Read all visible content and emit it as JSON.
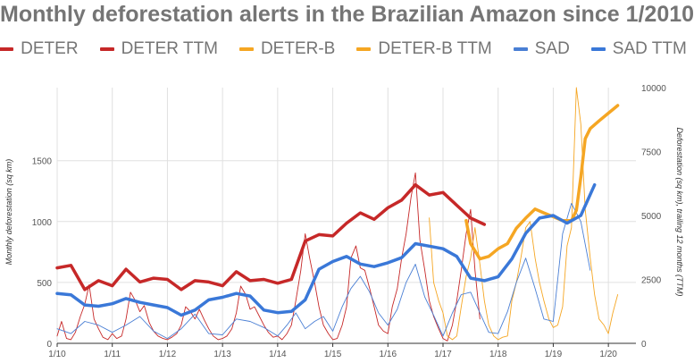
{
  "chart_data": {
    "type": "line",
    "title": "Monthly deforestation alerts in the Brazilian Amazon since 1/2010",
    "ylabel": "Monthly deforestation (sq km)",
    "y2label": "Deforestation (sq km), trailing 12 months (TTM)",
    "ylim": [
      0,
      2100
    ],
    "y2lim": [
      0,
      10000
    ],
    "xlim": [
      2010.0,
      2020.5
    ],
    "grid": true,
    "legend": "top",
    "x_ticks": [
      {
        "x": 2010,
        "label": "1/10"
      },
      {
        "x": 2011,
        "label": "1/11"
      },
      {
        "x": 2012,
        "label": "1/12"
      },
      {
        "x": 2013,
        "label": "1/13"
      },
      {
        "x": 2014,
        "label": "1/14"
      },
      {
        "x": 2015,
        "label": "1/15"
      },
      {
        "x": 2016,
        "label": "1/16"
      },
      {
        "x": 2017,
        "label": "1/17"
      },
      {
        "x": 2018,
        "label": "1/18"
      },
      {
        "x": 2019,
        "label": "1/19"
      },
      {
        "x": 2020,
        "label": "1/20"
      }
    ],
    "y_ticks": [
      0,
      500,
      1000,
      1500
    ],
    "y2_ticks": [
      0,
      2500,
      5000,
      7500,
      10000
    ],
    "series": [
      {
        "name": "DETER",
        "color": "#c62828",
        "axis": "left",
        "width": 0.9,
        "x": [
          2010.0,
          2010.08,
          2010.17,
          2010.25,
          2010.33,
          2010.42,
          2010.5,
          2010.58,
          2010.67,
          2010.75,
          2010.83,
          2010.92,
          2011.0,
          2011.08,
          2011.17,
          2011.25,
          2011.33,
          2011.42,
          2011.5,
          2011.58,
          2011.67,
          2011.75,
          2011.83,
          2011.92,
          2012.0,
          2012.08,
          2012.17,
          2012.25,
          2012.33,
          2012.42,
          2012.5,
          2012.58,
          2012.67,
          2012.75,
          2012.83,
          2012.92,
          2013.0,
          2013.08,
          2013.17,
          2013.25,
          2013.33,
          2013.42,
          2013.5,
          2013.58,
          2013.67,
          2013.75,
          2013.83,
          2013.92,
          2014.0,
          2014.08,
          2014.17,
          2014.25,
          2014.33,
          2014.42,
          2014.5,
          2014.58,
          2014.67,
          2014.75,
          2014.83,
          2014.92,
          2015.0,
          2015.08,
          2015.17,
          2015.25,
          2015.33,
          2015.42,
          2015.5,
          2015.58,
          2015.67,
          2015.75,
          2015.83,
          2015.92,
          2016.0,
          2016.08,
          2016.17,
          2016.25,
          2016.33,
          2016.42,
          2016.5,
          2016.58,
          2016.67,
          2016.75,
          2016.83,
          2016.92,
          2017.0,
          2017.08,
          2017.17,
          2017.25,
          2017.33,
          2017.42,
          2017.5,
          2017.58,
          2017.67
        ],
        "y": [
          60,
          180,
          40,
          30,
          90,
          220,
          320,
          480,
          200,
          120,
          50,
          30,
          80,
          40,
          60,
          200,
          420,
          350,
          260,
          310,
          170,
          100,
          60,
          40,
          30,
          50,
          80,
          150,
          300,
          260,
          200,
          280,
          190,
          120,
          60,
          30,
          40,
          60,
          120,
          250,
          470,
          400,
          280,
          300,
          220,
          150,
          90,
          50,
          60,
          30,
          80,
          150,
          350,
          600,
          900,
          700,
          500,
          300,
          150,
          80,
          30,
          40,
          150,
          300,
          700,
          800,
          620,
          600,
          450,
          300,
          150,
          100,
          80,
          300,
          450,
          700,
          900,
          1200,
          1400,
          850,
          600,
          350,
          220,
          120,
          40,
          20,
          150,
          350,
          600,
          900,
          1100,
          600,
          200
        ]
      },
      {
        "name": "DETER TTM",
        "color": "#c62828",
        "axis": "right",
        "width": 3.5,
        "x": [
          2010.0,
          2010.25,
          2010.5,
          2010.75,
          2011.0,
          2011.25,
          2011.5,
          2011.75,
          2012.0,
          2012.25,
          2012.5,
          2012.75,
          2013.0,
          2013.25,
          2013.5,
          2013.75,
          2014.0,
          2014.25,
          2014.5,
          2014.75,
          2015.0,
          2015.25,
          2015.5,
          2015.75,
          2016.0,
          2016.25,
          2016.5,
          2016.75,
          2017.0,
          2017.25,
          2017.5,
          2017.75
        ],
        "y": [
          2950,
          3050,
          2100,
          2450,
          2250,
          2900,
          2400,
          2550,
          2500,
          2100,
          2450,
          2400,
          2250,
          2800,
          2450,
          2500,
          2350,
          2500,
          4000,
          4250,
          4200,
          4700,
          5100,
          4850,
          5300,
          5600,
          6200,
          5800,
          5900,
          5400,
          4900,
          4650
        ]
      },
      {
        "name": "DETER-B",
        "color": "#f5a623",
        "axis": "left",
        "width": 0.9,
        "x": [
          2016.75,
          2016.83,
          2016.92,
          2017.0,
          2017.08,
          2017.17,
          2017.25,
          2017.33,
          2017.42,
          2017.5,
          2017.58,
          2017.67,
          2017.75,
          2017.83,
          2017.92,
          2018.0,
          2018.08,
          2018.17,
          2018.25,
          2018.33,
          2018.42,
          2018.5,
          2018.58,
          2018.67,
          2018.75,
          2018.83,
          2018.92,
          2019.0,
          2019.08,
          2019.17,
          2019.25,
          2019.33,
          2019.42,
          2019.5,
          2019.58,
          2019.67,
          2019.75,
          2019.83,
          2019.92,
          2020.0,
          2020.08,
          2020.17
        ],
        "y": [
          1030,
          500,
          350,
          250,
          60,
          30,
          60,
          300,
          550,
          700,
          950,
          650,
          350,
          150,
          60,
          30,
          50,
          60,
          350,
          500,
          720,
          950,
          1000,
          700,
          500,
          350,
          200,
          130,
          150,
          300,
          800,
          950,
          2100,
          1800,
          1100,
          700,
          400,
          200,
          150,
          80,
          250,
          400
        ]
      },
      {
        "name": "DETER-B TTM",
        "color": "#f5a623",
        "axis": "right",
        "width": 3.5,
        "x": [
          2017.42,
          2017.5,
          2017.67,
          2017.83,
          2018.0,
          2018.17,
          2018.33,
          2018.5,
          2018.67,
          2018.83,
          2019.0,
          2019.17,
          2019.33,
          2019.42,
          2019.5,
          2019.58,
          2019.67,
          2019.83,
          2020.0,
          2020.17
        ],
        "y": [
          4800,
          3900,
          3300,
          3400,
          3700,
          3900,
          4500,
          4900,
          5250,
          5100,
          4950,
          4800,
          4800,
          5200,
          6500,
          8000,
          8400,
          8700,
          9000,
          9300
        ]
      },
      {
        "name": "SAD",
        "color": "#4a7fd4",
        "axis": "left",
        "width": 0.9,
        "x": [
          2010.0,
          2010.25,
          2010.5,
          2010.75,
          2011.0,
          2011.25,
          2011.5,
          2011.75,
          2012.0,
          2012.25,
          2012.5,
          2012.75,
          2013.0,
          2013.25,
          2013.5,
          2013.75,
          2014.0,
          2014.17,
          2014.33,
          2014.5,
          2014.67,
          2014.83,
          2015.0,
          2015.17,
          2015.33,
          2015.5,
          2015.67,
          2015.83,
          2016.0,
          2016.17,
          2016.33,
          2016.5,
          2016.67,
          2016.83,
          2017.0,
          2017.17,
          2017.33,
          2017.5,
          2017.67,
          2017.83,
          2018.0,
          2018.17,
          2018.33,
          2018.5,
          2018.67,
          2018.83,
          2019.0,
          2019.17,
          2019.33,
          2019.5,
          2019.67
        ],
        "y": [
          120,
          80,
          180,
          150,
          90,
          150,
          220,
          100,
          40,
          120,
          240,
          80,
          70,
          200,
          180,
          130,
          60,
          150,
          250,
          120,
          180,
          220,
          100,
          300,
          450,
          550,
          420,
          250,
          150,
          280,
          500,
          650,
          380,
          230,
          60,
          250,
          400,
          420,
          250,
          90,
          80,
          260,
          500,
          700,
          450,
          200,
          180,
          900,
          1150,
          1000,
          600
        ]
      },
      {
        "name": "SAD TTM",
        "color": "#3a78d8",
        "axis": "right",
        "width": 3.5,
        "x": [
          2010.0,
          2010.25,
          2010.5,
          2010.75,
          2011.0,
          2011.25,
          2011.5,
          2011.75,
          2012.0,
          2012.25,
          2012.5,
          2012.75,
          2013.0,
          2013.25,
          2013.5,
          2013.75,
          2014.0,
          2014.25,
          2014.5,
          2014.75,
          2015.0,
          2015.25,
          2015.5,
          2015.75,
          2016.0,
          2016.25,
          2016.5,
          2016.75,
          2017.0,
          2017.25,
          2017.5,
          2017.75,
          2018.0,
          2018.25,
          2018.5,
          2018.75,
          2019.0,
          2019.25,
          2019.5,
          2019.75
        ],
        "y": [
          1950,
          1900,
          1500,
          1450,
          1550,
          1750,
          1600,
          1500,
          1400,
          1100,
          1300,
          1700,
          1800,
          1950,
          1850,
          1300,
          1200,
          1250,
          1700,
          2900,
          3200,
          3400,
          3100,
          3000,
          3150,
          3350,
          3900,
          3800,
          3700,
          3400,
          2550,
          2450,
          2600,
          3300,
          4300,
          4900,
          5000,
          4700,
          5000,
          6200
        ]
      }
    ]
  }
}
